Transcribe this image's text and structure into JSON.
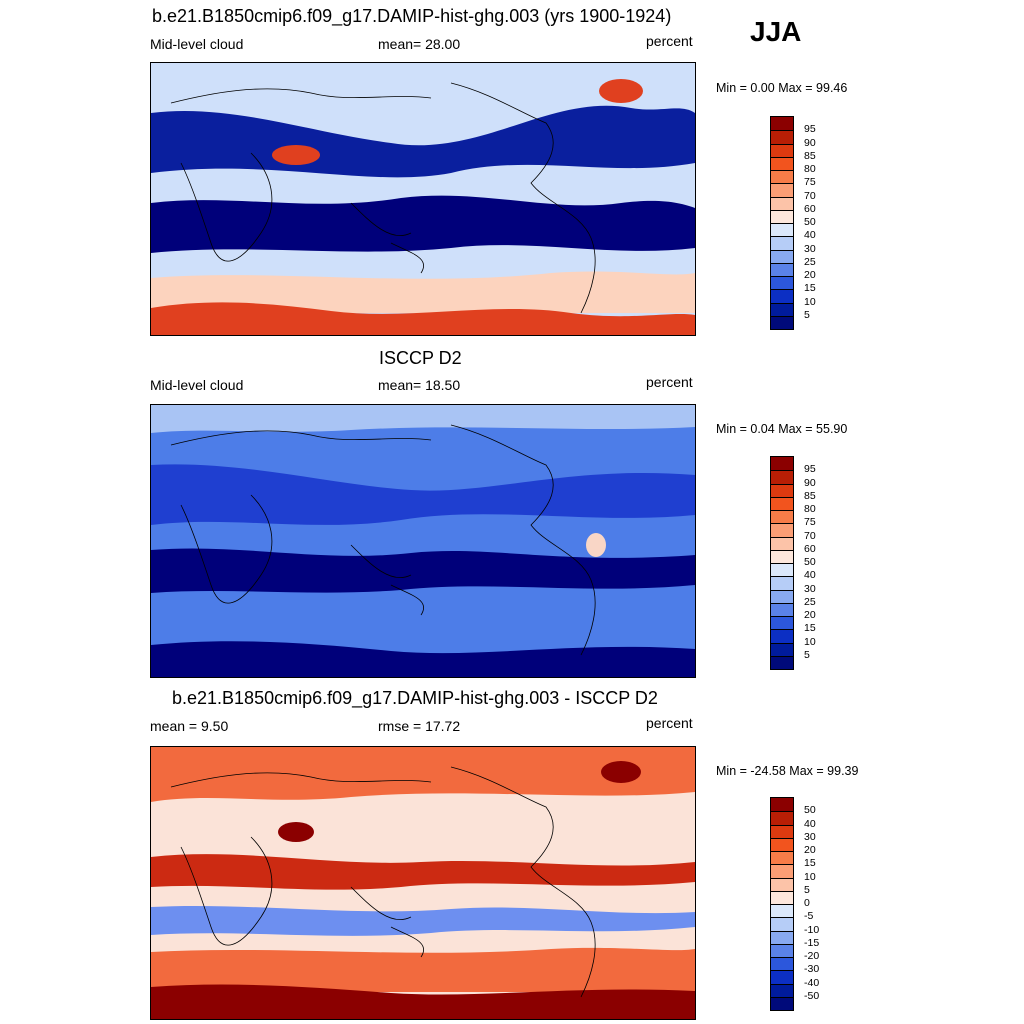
{
  "season": "JJA",
  "panels": [
    {
      "title": "b.e21.B1850cmip6.f09_g17.DAMIP-hist-ghg.003 (yrs 1900-1924)",
      "left_label": "Mid-level cloud",
      "center_label": "mean=  28.00",
      "units": "percent",
      "minmax": "Min =   0.00 Max =  99.46",
      "colorbar_labels": [
        "95",
        "90",
        "85",
        "80",
        "75",
        "70",
        "60",
        "50",
        "40",
        "30",
        "25",
        "20",
        "15",
        "10",
        "5"
      ],
      "colors": {
        "bg": "#cfe0fa",
        "low": "#0a1f9e",
        "deep": "#00007a",
        "warm": "#fcd3be",
        "hot": "#e0401f"
      }
    },
    {
      "title": "ISCCP D2",
      "left_label": "Mid-level cloud",
      "center_label": "mean=  18.50",
      "units": "percent",
      "minmax": "Min =   0.04 Max =  55.90",
      "colorbar_labels": [
        "95",
        "90",
        "85",
        "80",
        "75",
        "70",
        "60",
        "50",
        "40",
        "30",
        "25",
        "20",
        "15",
        "10",
        "5"
      ],
      "colors": {
        "bg": "#4d7de8",
        "low": "#1f3fd0",
        "deep": "#00007a",
        "warm": "#a9c4f4",
        "hot": "#f9d6c6"
      }
    },
    {
      "title": "b.e21.B1850cmip6.f09_g17.DAMIP-hist-ghg.003 - ISCCP D2",
      "left_label": "mean =   9.50",
      "center_label": "rmse =  17.72",
      "units": "percent",
      "minmax": "Min = -24.58 Max =  99.39",
      "colorbar_labels": [
        "50",
        "40",
        "30",
        "20",
        "15",
        "10",
        "5",
        "0",
        "-5",
        "-10",
        "-15",
        "-20",
        "-30",
        "-40",
        "-50"
      ],
      "colors": {
        "bg": "#fbe3d8",
        "low": "#6d8ff0",
        "deep": "#8b0000",
        "warm": "#f26a3e",
        "hot": "#cc2a12"
      }
    }
  ],
  "colorbar_colors": [
    "#8b0000",
    "#b81e05",
    "#dd3a10",
    "#f2541e",
    "#f77c48",
    "#fb9e75",
    "#fcc3a8",
    "#fde7dc",
    "#dbe8fb",
    "#b6cdf7",
    "#88a9f0",
    "#5a82e8",
    "#2c57dc",
    "#0c2fc4",
    "#001b9c",
    "#000a7a"
  ]
}
